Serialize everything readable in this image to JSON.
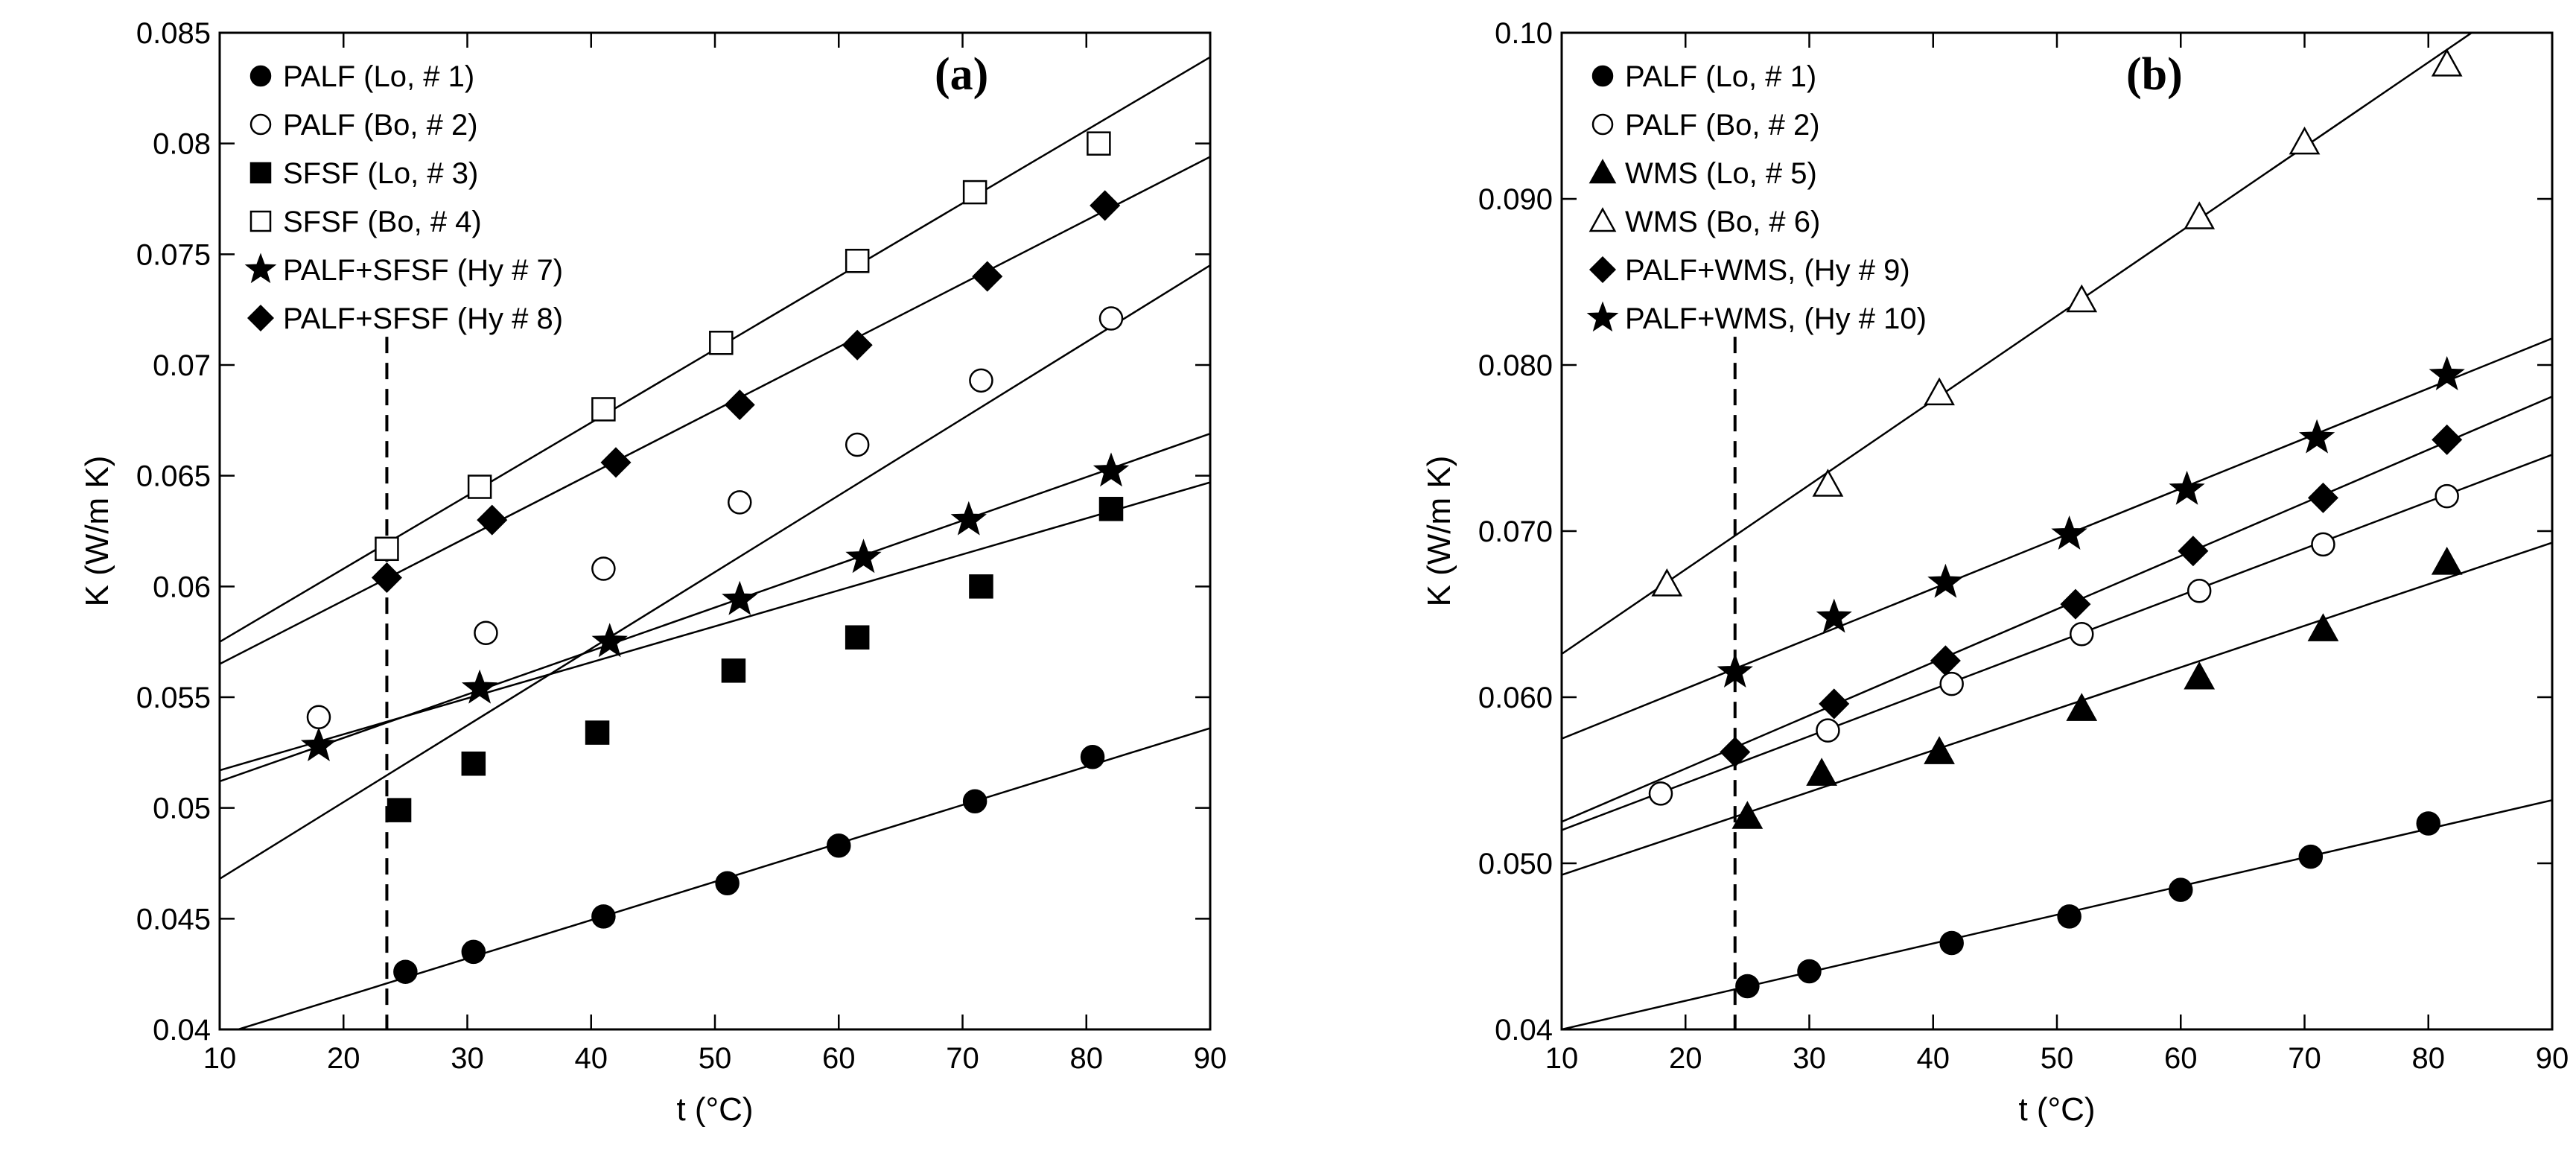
{
  "chart_data": [
    {
      "id": "a",
      "type": "scatter",
      "panel_label": "(a)",
      "xlabel": "t (°C)",
      "ylabel": "K (W/m K)",
      "xlim": [
        10,
        90
      ],
      "ylim": [
        0.04,
        0.085
      ],
      "xticks": [
        10,
        20,
        30,
        40,
        50,
        60,
        70,
        80,
        90
      ],
      "yticks": [
        0.04,
        0.045,
        0.05,
        0.055,
        0.06,
        0.065,
        0.07,
        0.075,
        0.08,
        0.085
      ],
      "ytick_labels": [
        "0.04",
        "0.045",
        "0.05",
        "0.055",
        "0.06",
        "0.065",
        "0.07",
        "0.075",
        "0.08",
        "0.085"
      ],
      "vline_x": 23.5,
      "legend_position": "top-left",
      "series": [
        {
          "name": "PALF (Lo, # 1)",
          "marker": "circle",
          "filled": true,
          "points": [
            [
              25,
              0.0426
            ],
            [
              30.5,
              0.0435
            ],
            [
              41,
              0.0451
            ],
            [
              51,
              0.0466
            ],
            [
              60,
              0.0483
            ],
            [
              71,
              0.0503
            ],
            [
              80.5,
              0.0523
            ]
          ],
          "fit": [
            [
              11.5,
              0.04
            ],
            [
              90,
              0.0536
            ]
          ]
        },
        {
          "name": "PALF (Bo, # 2)",
          "marker": "circle",
          "filled": false,
          "points": [
            [
              18,
              0.0541
            ],
            [
              31.5,
              0.0579
            ],
            [
              41,
              0.0608
            ],
            [
              52,
              0.0638
            ],
            [
              61.5,
              0.0664
            ],
            [
              71.5,
              0.0693
            ],
            [
              82,
              0.0721
            ]
          ],
          "fit": [
            [
              10,
              0.0468
            ],
            [
              90,
              0.0745
            ]
          ]
        },
        {
          "name": "SFSF (Lo, # 3)",
          "marker": "square",
          "filled": true,
          "points": [
            [
              24.5,
              0.0499
            ],
            [
              30.5,
              0.052
            ],
            [
              40.5,
              0.0534
            ],
            [
              51.5,
              0.0562
            ],
            [
              61.5,
              0.0577
            ],
            [
              71.5,
              0.06
            ],
            [
              82,
              0.0635
            ]
          ],
          "fit": [
            [
              10,
              0.0517
            ],
            [
              90,
              0.0647
            ]
          ]
        },
        {
          "name": "SFSF (Bo, # 4)",
          "marker": "square",
          "filled": false,
          "points": [
            [
              23.5,
              0.0617
            ],
            [
              31,
              0.0645
            ],
            [
              41,
              0.068
            ],
            [
              50.5,
              0.071
            ],
            [
              61.5,
              0.0747
            ],
            [
              71,
              0.0778
            ],
            [
              81,
              0.08
            ]
          ],
          "fit": [
            [
              10,
              0.0575
            ],
            [
              90,
              0.0839
            ]
          ]
        },
        {
          "name": "PALF+SFSF (Hy # 7)",
          "marker": "star",
          "filled": true,
          "points": [
            [
              18,
              0.0528
            ],
            [
              31,
              0.0554
            ],
            [
              41.5,
              0.0575
            ],
            [
              52,
              0.0594
            ],
            [
              62,
              0.0613
            ],
            [
              70.5,
              0.063
            ],
            [
              82,
              0.0652
            ]
          ],
          "fit": [
            [
              10,
              0.0512
            ],
            [
              90,
              0.0669
            ]
          ]
        },
        {
          "name": "PALF+SFSF (Hy # 8)",
          "marker": "diamond",
          "filled": true,
          "points": [
            [
              23.5,
              0.0604
            ],
            [
              32,
              0.063
            ],
            [
              42,
              0.0656
            ],
            [
              52,
              0.0682
            ],
            [
              61.5,
              0.0709
            ],
            [
              72,
              0.074
            ],
            [
              81.5,
              0.0772
            ]
          ],
          "fit": [
            [
              10,
              0.0565
            ],
            [
              90,
              0.0794
            ]
          ]
        }
      ]
    },
    {
      "id": "b",
      "type": "scatter",
      "panel_label": "(b)",
      "xlabel": "t (°C)",
      "ylabel": "K (W/m K)",
      "xlim": [
        10,
        90
      ],
      "ylim": [
        0.04,
        0.1
      ],
      "xticks": [
        10,
        20,
        30,
        40,
        50,
        60,
        70,
        80,
        90
      ],
      "yticks": [
        0.04,
        0.05,
        0.06,
        0.07,
        0.08,
        0.09,
        0.1
      ],
      "ytick_labels": [
        "0.04",
        "0.050",
        "0.060",
        "0.070",
        "0.080",
        "0.090",
        "0.10"
      ],
      "vline_x": 24,
      "legend_position": "top-left",
      "series": [
        {
          "name": "PALF (Lo, # 1)",
          "marker": "circle",
          "filled": true,
          "points": [
            [
              25,
              0.0426
            ],
            [
              30,
              0.0435
            ],
            [
              41.5,
              0.0452
            ],
            [
              51,
              0.0468
            ],
            [
              60,
              0.0484
            ],
            [
              70.5,
              0.0504
            ],
            [
              80,
              0.0524
            ]
          ],
          "fit": [
            [
              10,
              0.04
            ],
            [
              90,
              0.0538
            ]
          ]
        },
        {
          "name": "PALF (Bo, # 2)",
          "marker": "circle",
          "filled": false,
          "points": [
            [
              18,
              0.0542
            ],
            [
              31.5,
              0.058
            ],
            [
              41.5,
              0.0608
            ],
            [
              52,
              0.0638
            ],
            [
              61.5,
              0.0664
            ],
            [
              71.5,
              0.0692
            ],
            [
              81.5,
              0.0721
            ]
          ],
          "fit": [
            [
              10,
              0.052
            ],
            [
              90,
              0.0746
            ]
          ]
        },
        {
          "name": "WMS (Lo, # 5)",
          "marker": "triangle",
          "filled": true,
          "points": [
            [
              25,
              0.0528
            ],
            [
              31,
              0.0554
            ],
            [
              40.5,
              0.0567
            ],
            [
              52,
              0.0593
            ],
            [
              61.5,
              0.0612
            ],
            [
              71.5,
              0.0641
            ],
            [
              81.5,
              0.0681
            ]
          ],
          "fit": [
            [
              10,
              0.0493
            ],
            [
              90,
              0.0693
            ]
          ]
        },
        {
          "name": "WMS (Bo, # 6)",
          "marker": "triangle",
          "filled": false,
          "points": [
            [
              18.5,
              0.0668
            ],
            [
              31.5,
              0.0728
            ],
            [
              40.5,
              0.0783
            ],
            [
              52,
              0.0839
            ],
            [
              61.5,
              0.0889
            ],
            [
              70,
              0.0934
            ],
            [
              81.5,
              0.0981
            ]
          ],
          "fit": [
            [
              10,
              0.0626
            ],
            [
              83.5,
              0.1
            ]
          ]
        },
        {
          "name": "PALF+WMS, (Hy # 9)",
          "marker": "diamond",
          "filled": true,
          "points": [
            [
              24,
              0.0567
            ],
            [
              32,
              0.0596
            ],
            [
              41,
              0.0622
            ],
            [
              51.5,
              0.0656
            ],
            [
              61,
              0.0688
            ],
            [
              71.5,
              0.072
            ],
            [
              81.5,
              0.0755
            ]
          ],
          "fit": [
            [
              10,
              0.0525
            ],
            [
              90,
              0.0781
            ]
          ]
        },
        {
          "name": "PALF+WMS, (Hy # 10)",
          "marker": "star",
          "filled": true,
          "points": [
            [
              24,
              0.0615
            ],
            [
              32,
              0.0648
            ],
            [
              41,
              0.0669
            ],
            [
              51,
              0.0698
            ],
            [
              60.5,
              0.0725
            ],
            [
              71,
              0.0756
            ],
            [
              81.5,
              0.0794
            ]
          ],
          "fit": [
            [
              10,
              0.0575
            ],
            [
              90,
              0.0816
            ]
          ]
        }
      ]
    }
  ]
}
